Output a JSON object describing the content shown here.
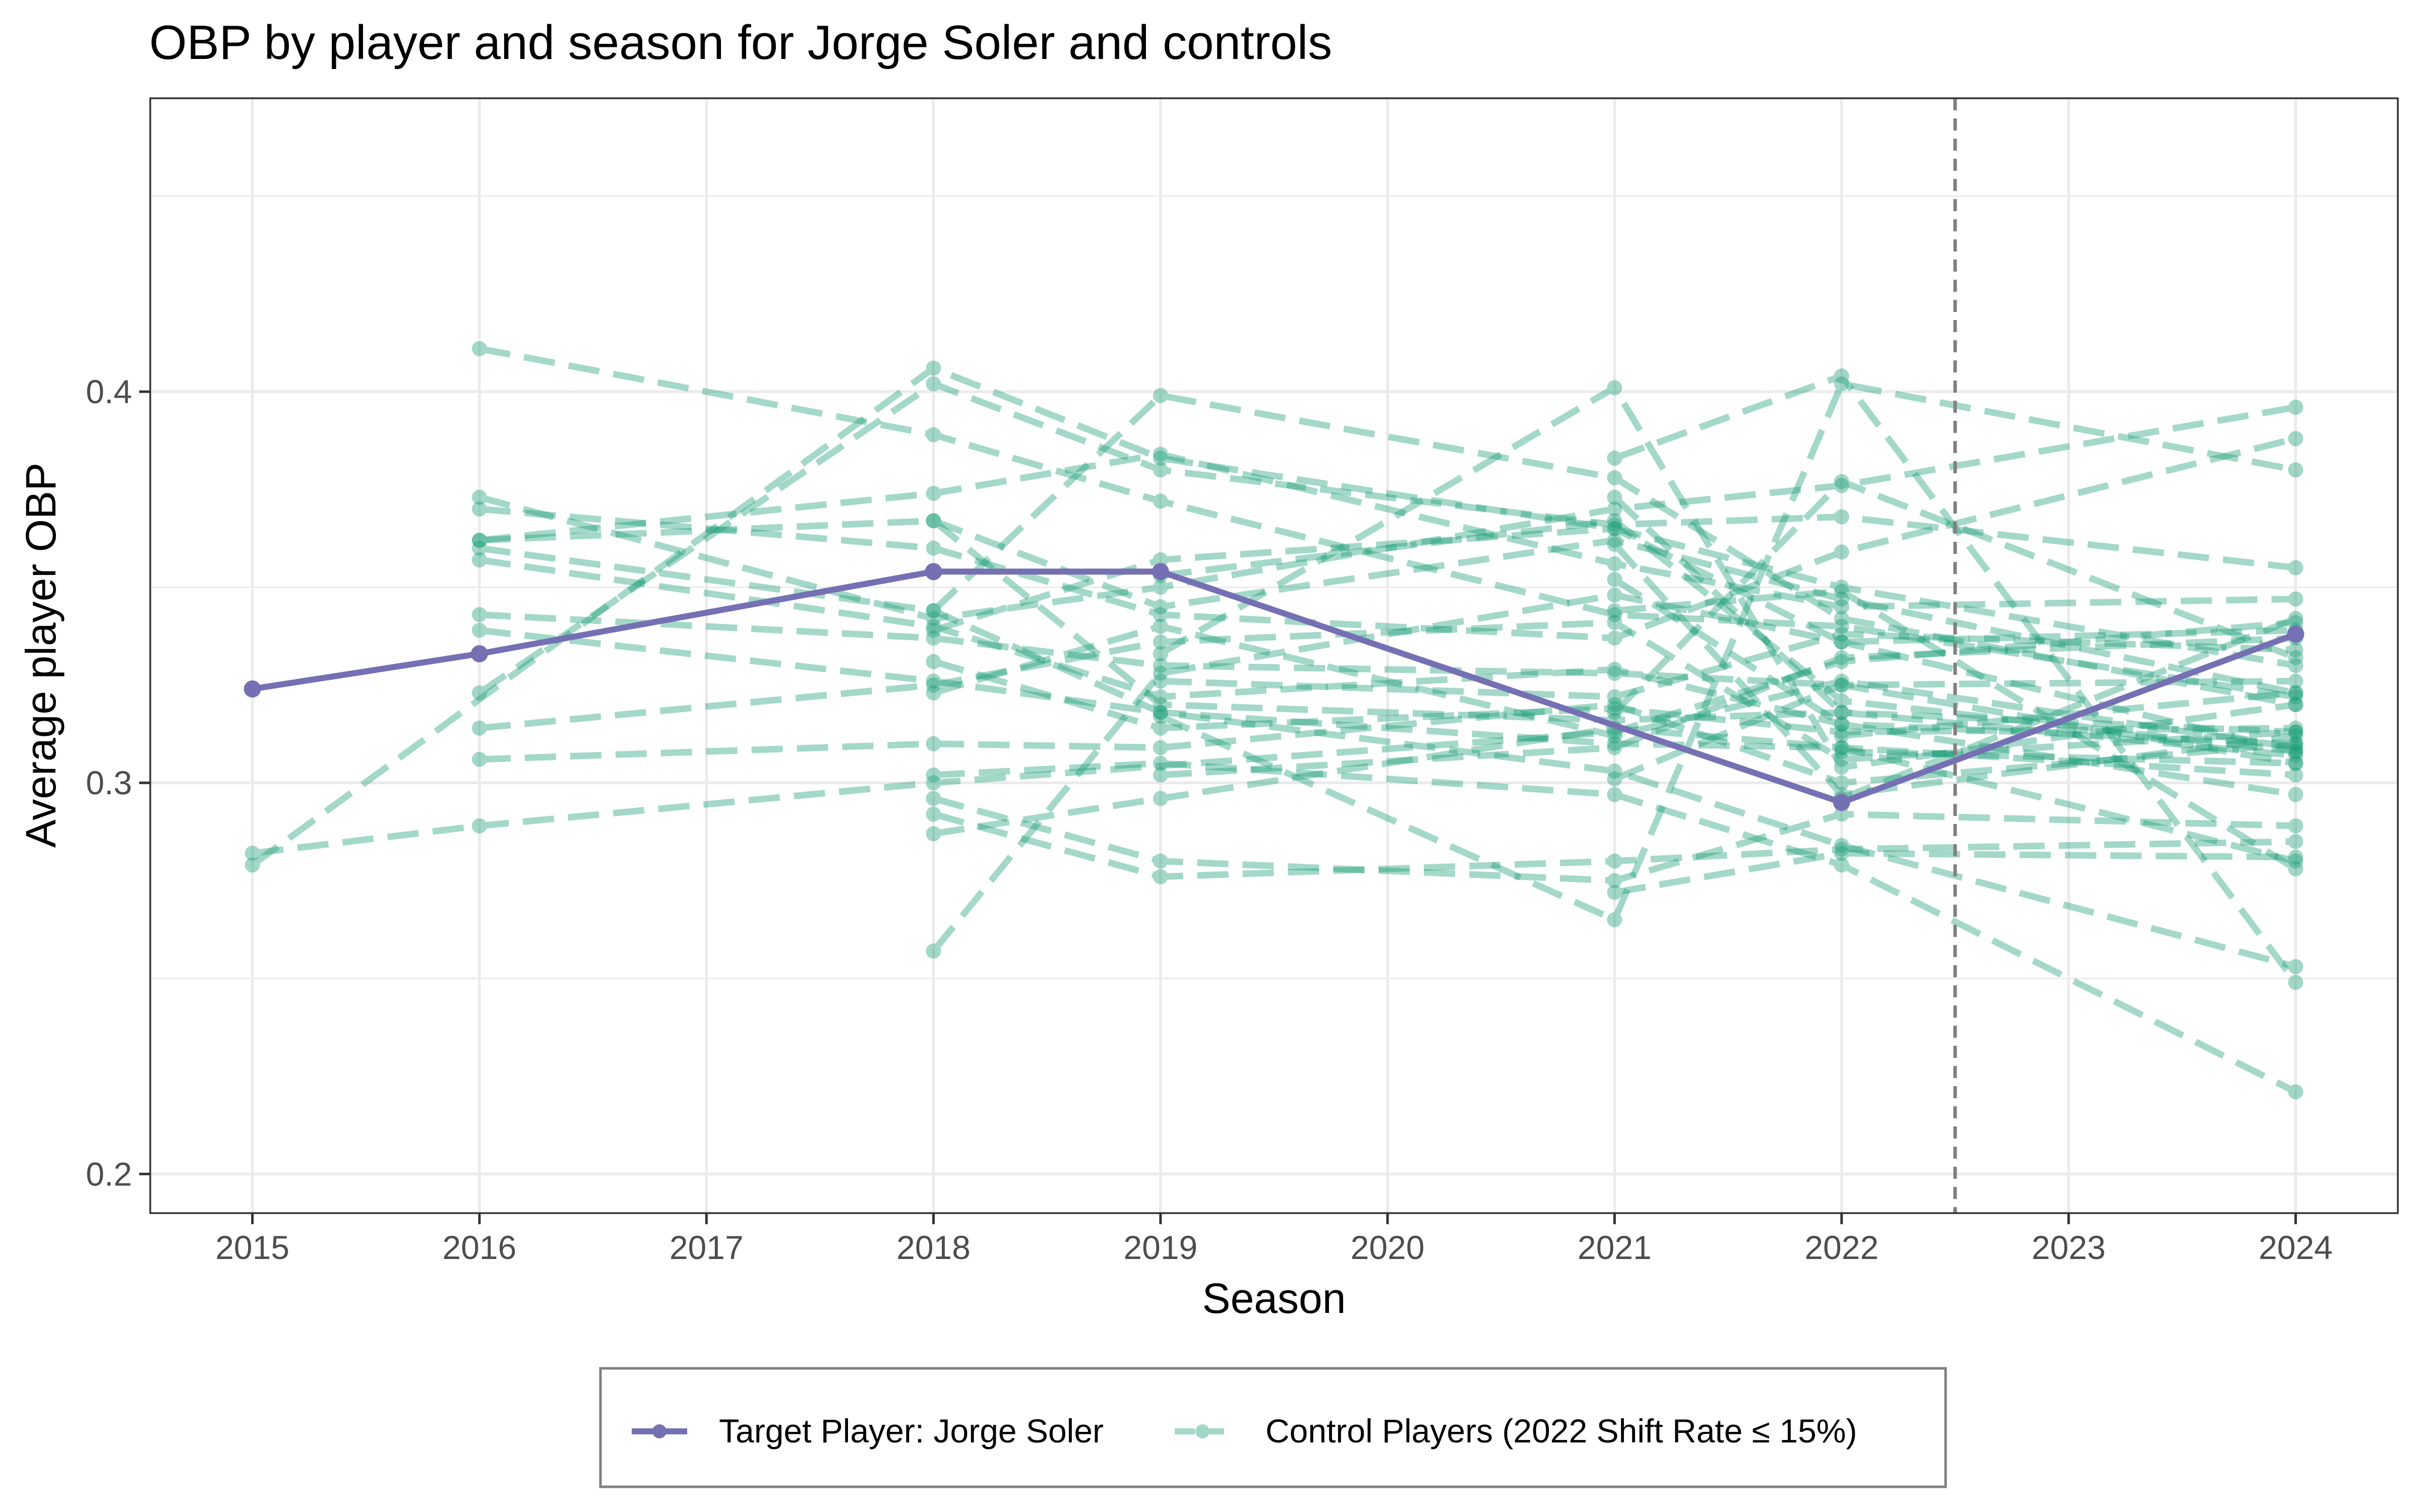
{
  "chart_data": {
    "type": "line",
    "title": "OBP by player and season for Jorge Soler and controls",
    "xlabel": "Season",
    "ylabel": "Average player OBP",
    "xlim": [
      2014.55,
      2024.45
    ],
    "ylim": [
      0.19,
      0.475
    ],
    "x_ticks": [
      2015,
      2016,
      2017,
      2018,
      2019,
      2020,
      2021,
      2022,
      2023,
      2024
    ],
    "y_ticks": [
      0.2,
      0.3,
      0.4
    ],
    "y_tick_labels": [
      "0.2",
      "0.3",
      "0.4"
    ],
    "grid": true,
    "intervention_line": {
      "x": 2022.5,
      "style": "dashed",
      "color": "#808080"
    },
    "colors": {
      "target": "#7570b3",
      "control": "#1b9e77",
      "control_alpha": 0.4
    },
    "target_series": {
      "name": "Target Player: Jorge Soler",
      "x": [
        2015,
        2016,
        2018,
        2019,
        2022,
        2024
      ],
      "values": [
        0.324,
        0.333,
        0.354,
        0.354,
        0.295,
        0.338
      ]
    },
    "control_legend_label": "Control Players (2022 Shift Rate ≤ 15%)",
    "control_series": [
      {
        "x": [
          2016,
          2018,
          2019,
          2021,
          2022,
          2024
        ],
        "values": [
          0.411,
          0.389,
          0.372,
          0.343,
          0.34,
          0.322
        ]
      },
      {
        "x": [
          2015,
          2018,
          2019,
          2021,
          2022,
          2024
        ],
        "values": [
          0.279,
          0.406,
          0.383,
          0.365,
          0.35,
          0.33
        ]
      },
      {
        "x": [
          2015,
          2016,
          2018,
          2021,
          2022,
          2024
        ],
        "values": [
          0.282,
          0.289,
          0.3,
          0.313,
          0.331,
          0.341
        ]
      },
      {
        "x": [
          2016,
          2018,
          2019,
          2021,
          2022,
          2024
        ],
        "values": [
          0.373,
          0.342,
          0.35,
          0.37,
          0.376,
          0.396
        ]
      },
      {
        "x": [
          2016,
          2018,
          2019,
          2021,
          2022,
          2024
        ],
        "values": [
          0.362,
          0.374,
          0.384,
          0.356,
          0.345,
          0.347
        ]
      },
      {
        "x": [
          2016,
          2018,
          2019,
          2021,
          2022,
          2024
        ],
        "values": [
          0.357,
          0.34,
          0.322,
          0.329,
          0.315,
          0.31
        ]
      },
      {
        "x": [
          2016,
          2018,
          2019,
          2021,
          2022,
          2024
        ],
        "values": [
          0.343,
          0.337,
          0.33,
          0.328,
          0.325,
          0.305
        ]
      },
      {
        "x": [
          2016,
          2018,
          2019,
          2021,
          2022,
          2024
        ],
        "values": [
          0.339,
          0.326,
          0.318,
          0.31,
          0.309,
          0.28
        ]
      },
      {
        "x": [
          2016,
          2018,
          2019,
          2021,
          2022,
          2024
        ],
        "values": [
          0.323,
          0.402,
          0.38,
          0.366,
          0.368,
          0.355
        ]
      },
      {
        "x": [
          2016,
          2018,
          2019,
          2021,
          2022,
          2024
        ],
        "values": [
          0.314,
          0.325,
          0.336,
          0.341,
          0.306,
          0.313
        ]
      },
      {
        "x": [
          2016,
          2018,
          2019,
          2021,
          2022,
          2024
        ],
        "values": [
          0.306,
          0.31,
          0.309,
          0.32,
          0.3,
          0.31
        ]
      },
      {
        "x": [
          2016,
          2018,
          2019,
          2021,
          2022,
          2024
        ],
        "values": [
          0.37,
          0.36,
          0.343,
          0.337,
          0.359,
          0.388
        ]
      },
      {
        "x": [
          2016,
          2018,
          2019,
          2021,
          2022,
          2024
        ],
        "values": [
          0.362,
          0.367,
          0.345,
          0.362,
          0.347,
          0.323
        ]
      },
      {
        "x": [
          2016,
          2018,
          2019,
          2021,
          2022,
          2024
        ],
        "values": [
          0.36,
          0.344,
          0.318,
          0.303,
          0.284,
          0.253
        ]
      },
      {
        "x": [
          2018,
          2019,
          2021,
          2022,
          2024
        ],
        "values": [
          0.257,
          0.328,
          0.348,
          0.336,
          0.308
        ]
      },
      {
        "x": [
          2018,
          2019,
          2021,
          2022,
          2024
        ],
        "values": [
          0.287,
          0.296,
          0.314,
          0.309,
          0.302
        ]
      },
      {
        "x": [
          2018,
          2019,
          2021,
          2022,
          2024
        ],
        "values": [
          0.292,
          0.276,
          0.28,
          0.283,
          0.285
        ]
      },
      {
        "x": [
          2018,
          2019,
          2021,
          2022,
          2024
        ],
        "values": [
          0.296,
          0.28,
          0.275,
          0.292,
          0.289
        ]
      },
      {
        "x": [
          2018,
          2019,
          2021,
          2022,
          2024
        ],
        "values": [
          0.302,
          0.305,
          0.297,
          0.279,
          0.221
        ]
      },
      {
        "x": [
          2018,
          2019,
          2021,
          2022,
          2024
        ],
        "values": [
          0.339,
          0.357,
          0.365,
          0.336,
          0.339
        ]
      },
      {
        "x": [
          2018,
          2019,
          2021,
          2022,
          2024
        ],
        "values": [
          0.323,
          0.34,
          0.312,
          0.326,
          0.309
        ]
      },
      {
        "x": [
          2018,
          2019,
          2021,
          2022,
          2024
        ],
        "values": [
          0.331,
          0.314,
          0.319,
          0.313,
          0.314
        ]
      },
      {
        "x": [
          2018,
          2019,
          2021,
          2022,
          2024
        ],
        "values": [
          0.344,
          0.399,
          0.378,
          0.342,
          0.32
        ]
      },
      {
        "x": [
          2018,
          2019,
          2021,
          2022,
          2024
        ],
        "values": [
          0.367,
          0.32,
          0.316,
          0.318,
          0.313
        ]
      },
      {
        "x": [
          2019,
          2021,
          2022,
          2024
        ],
        "values": [
          0.333,
          0.401,
          0.304,
          0.32
        ]
      },
      {
        "x": [
          2019,
          2021,
          2022,
          2024
        ],
        "values": [
          0.317,
          0.265,
          0.402,
          0.38
        ]
      },
      {
        "x": [
          2019,
          2021,
          2022,
          2024
        ],
        "values": [
          0.353,
          0.367,
          0.321,
          0.308
        ]
      },
      {
        "x": [
          2019,
          2021,
          2022,
          2024
        ],
        "values": [
          0.302,
          0.309,
          0.332,
          0.337
        ]
      },
      {
        "x": [
          2019,
          2021,
          2022,
          2024
        ],
        "values": [
          0.326,
          0.322,
          0.338,
          0.334
        ]
      },
      {
        "x": [
          2021,
          2022,
          2024
        ],
        "values": [
          0.383,
          0.404,
          0.249
        ]
      },
      {
        "x": [
          2021,
          2022,
          2024
        ],
        "values": [
          0.373,
          0.318,
          0.307
        ]
      },
      {
        "x": [
          2021,
          2022,
          2024
        ],
        "values": [
          0.301,
          0.325,
          0.326
        ]
      },
      {
        "x": [
          2021,
          2022,
          2024
        ],
        "values": [
          0.272,
          0.282,
          0.281
        ]
      },
      {
        "x": [
          2021,
          2022,
          2024
        ],
        "values": [
          0.352,
          0.315,
          0.297
        ]
      },
      {
        "x": [
          2021,
          2022,
          2024
        ],
        "values": [
          0.318,
          0.377,
          0.332
        ]
      },
      {
        "x": [
          2021,
          2022,
          2024
        ],
        "values": [
          0.344,
          0.349,
          0.278
        ]
      },
      {
        "x": [
          2021,
          2022,
          2024
        ],
        "values": [
          0.361,
          0.297,
          0.312
        ]
      },
      {
        "x": [
          2022,
          2024
        ],
        "values": [
          0.312,
          0.323
        ]
      },
      {
        "x": [
          2022,
          2024
        ],
        "values": [
          0.308,
          0.305
        ]
      },
      {
        "x": [
          2022,
          2024
        ],
        "values": [
          0.296,
          0.342
        ]
      }
    ]
  }
}
